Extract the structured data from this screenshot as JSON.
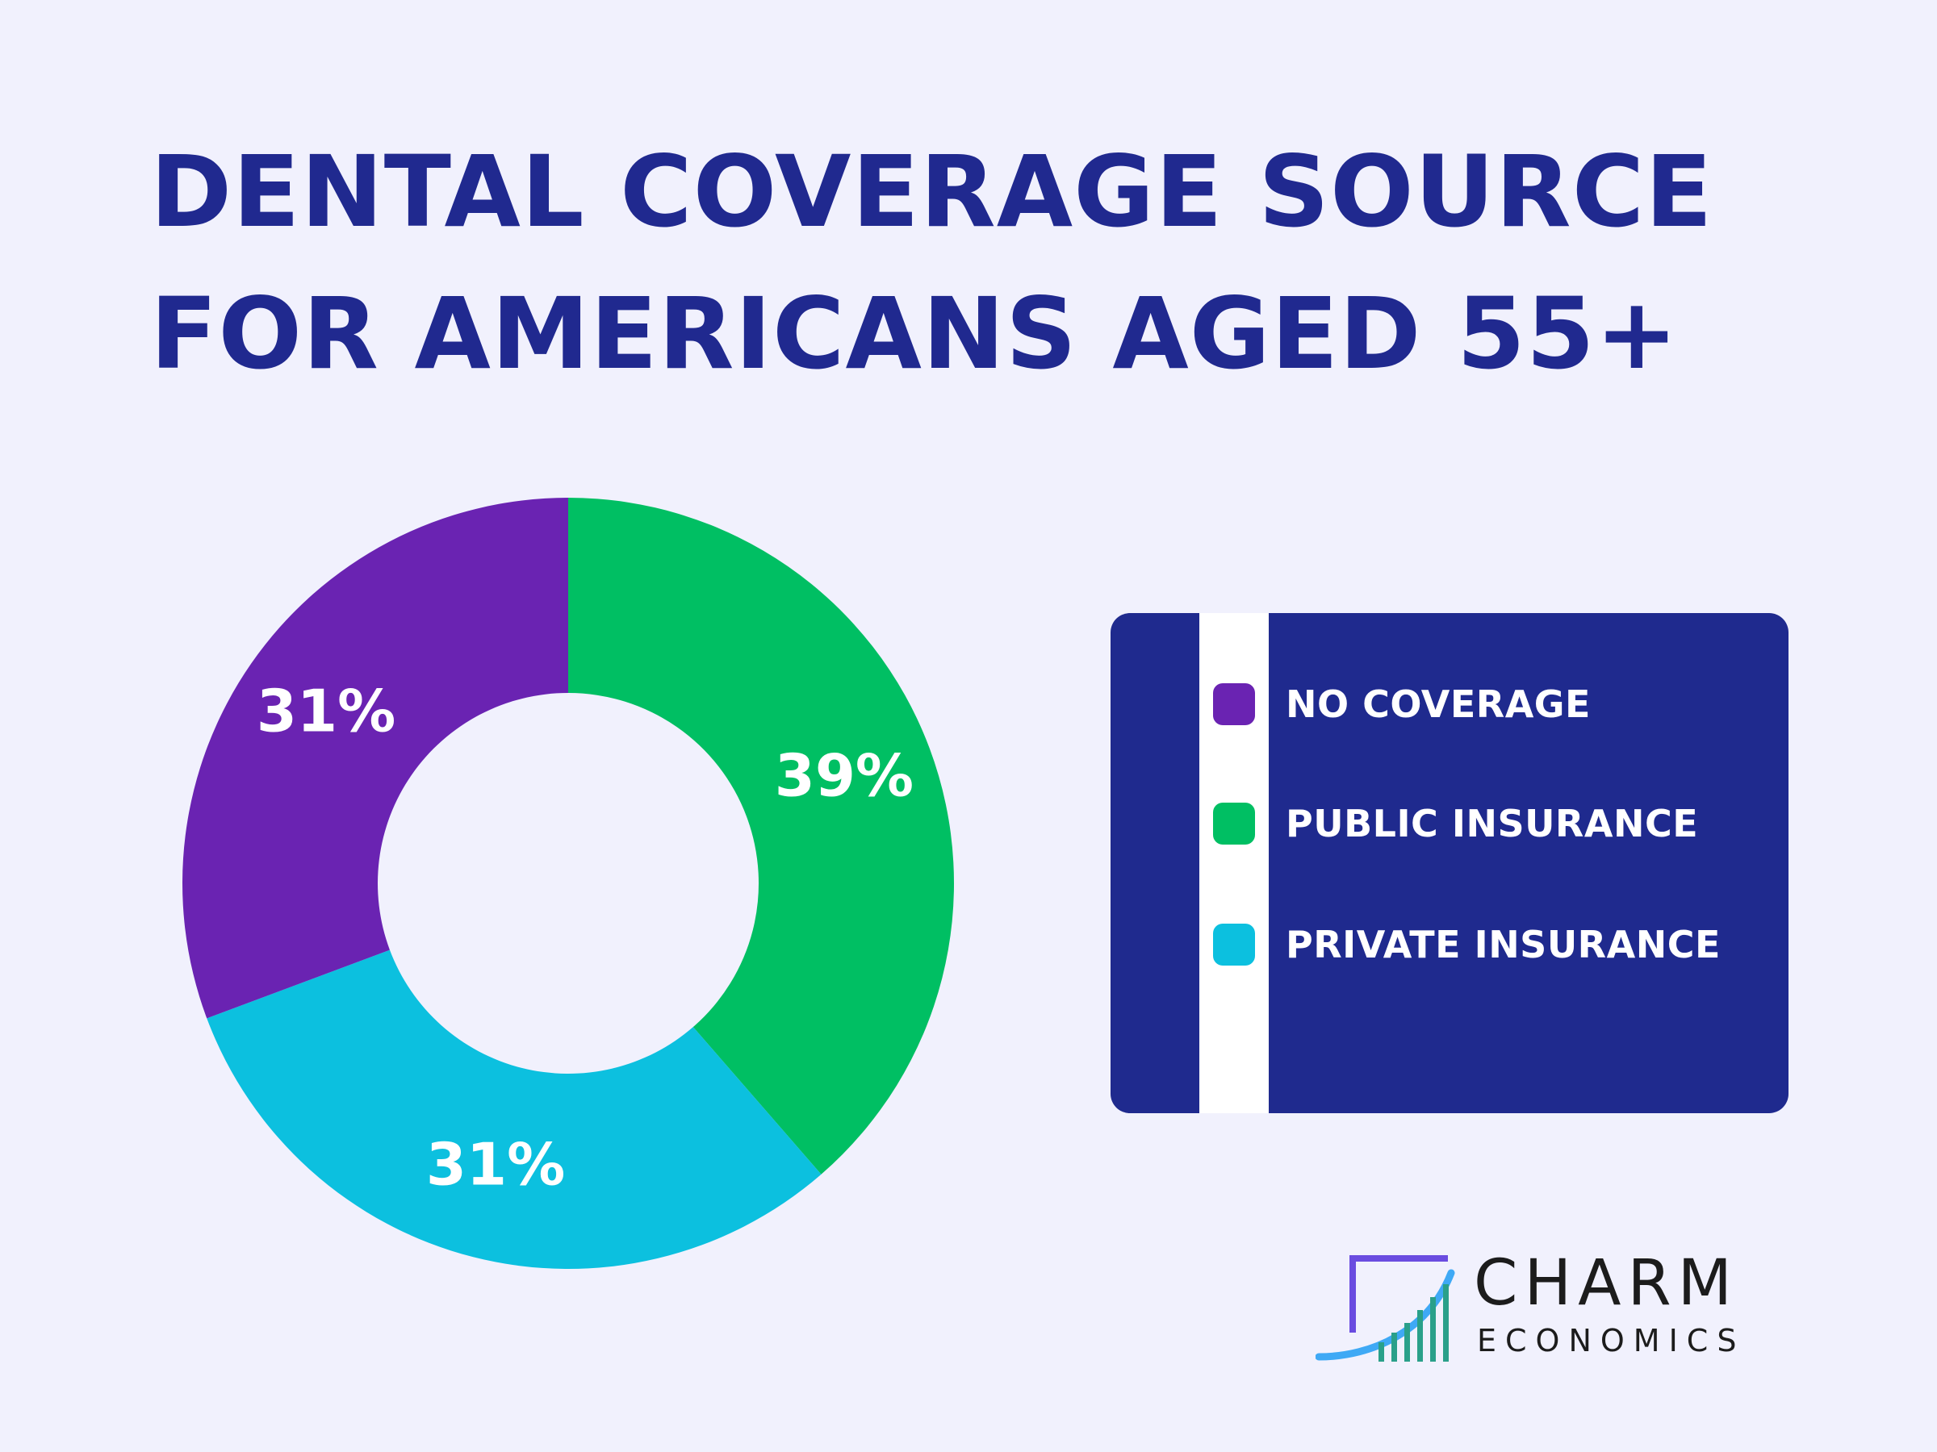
{
  "title": {
    "line1": "DENTAL COVERAGE SOURCE",
    "line2": "FOR AMERICANS AGED 55+"
  },
  "colors": {
    "background": "#f1f1fd",
    "title": "#20298f",
    "legend_box": "#1f2a8e",
    "no_coverage": "#6a23b2",
    "public_insurance": "#00bf63",
    "private_insurance": "#0cc0df"
  },
  "chart_data": {
    "type": "pie",
    "variant": "donut",
    "title": "DENTAL COVERAGE SOURCE FOR AMERICANS AGED 55+",
    "categories": [
      "PUBLIC INSURANCE",
      "PRIVATE INSURANCE",
      "NO COVERAGE"
    ],
    "values": [
      39,
      31,
      31
    ],
    "data_labels": [
      "39%",
      "31%",
      "31%"
    ],
    "colors": [
      "#00bf63",
      "#0cc0df",
      "#6a23b2"
    ],
    "legend_placement": "right"
  },
  "legend": {
    "items": [
      {
        "label": "NO COVERAGE",
        "color": "#6a23b2"
      },
      {
        "label": "PUBLIC INSURANCE",
        "color": "#00bf63"
      },
      {
        "label": "PRIVATE INSURANCE",
        "color": "#0cc0df"
      }
    ]
  },
  "logo": {
    "line1": "CHARM",
    "line2": "ECONOMICS"
  }
}
